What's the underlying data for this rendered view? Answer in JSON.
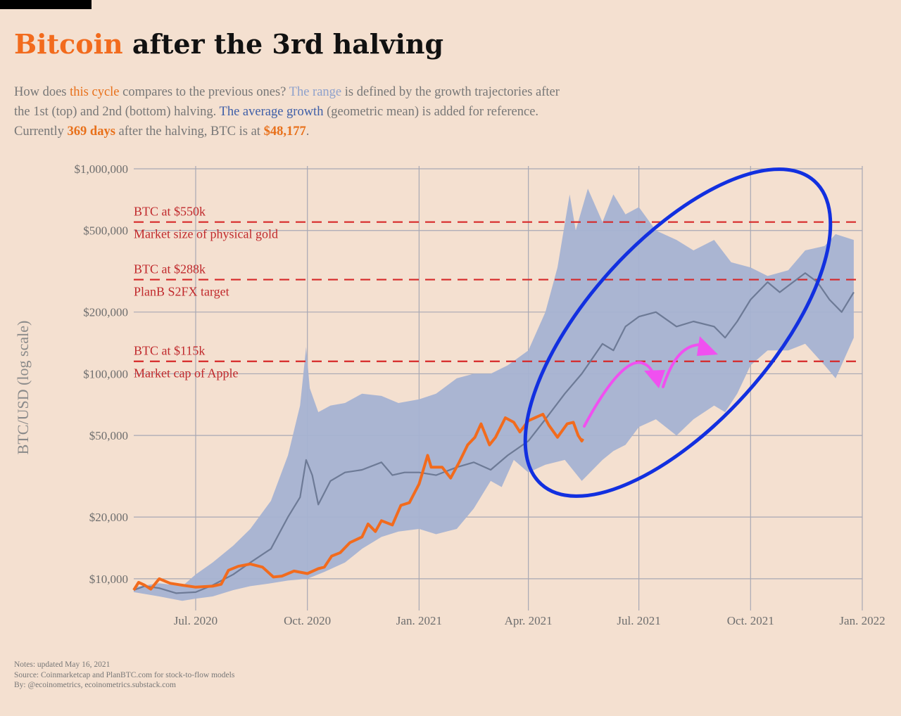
{
  "header": {
    "title_accent": "Bitcoin",
    "title_rest": " after the 3rd halving",
    "sub_1a": "How does ",
    "sub_1b": "this cycle",
    "sub_1c": " compares to the previous ones? ",
    "sub_1d": "The range",
    "sub_1e": " is defined by the growth trajectories after",
    "sub_2a": "the 1st (top) and 2nd (bottom) halving. ",
    "sub_2b": "The average growth",
    "sub_2c": " (geometric mean) is added for reference.",
    "sub_3a": "Currently ",
    "sub_3b": "369 days",
    "sub_3c": " after the halving, BTC is at ",
    "sub_3d": "$48,177",
    "sub_3e": "."
  },
  "notes": {
    "line1": "Notes: updated May 16, 2021",
    "line2": "Source: Coinmarketcap and PlanBTC.com for stock-to-flow models",
    "line3": "By: @ecoinometrics, ecoinometrics.substack.com"
  },
  "colors": {
    "btc": "#f26b1d",
    "range": "#a5b2d2",
    "average": "#6d7a96",
    "reference": "#d62828",
    "ellipse": "#1230e0",
    "arrow": "#f050f0"
  },
  "chart_data": {
    "type": "area",
    "ylabel": "BTC/USD (log scale)",
    "y_scale": "log",
    "ylim": [
      7000,
      1000000
    ],
    "xlim": [
      "2020-05-11",
      "2022-01-01"
    ],
    "x_ticks": [
      {
        "date": "2020-07-01",
        "label": "Jul. 2020"
      },
      {
        "date": "2020-10-01",
        "label": "Oct. 2020"
      },
      {
        "date": "2021-01-01",
        "label": "Jan. 2021"
      },
      {
        "date": "2021-04-01",
        "label": "Apr. 2021"
      },
      {
        "date": "2021-07-01",
        "label": "Jul. 2021"
      },
      {
        "date": "2021-10-01",
        "label": "Oct. 2021"
      },
      {
        "date": "2022-01-01",
        "label": "Jan. 2022"
      }
    ],
    "y_ticks": [
      {
        "value": 10000,
        "label": "$10,000"
      },
      {
        "value": 20000,
        "label": "$20,000"
      },
      {
        "value": 50000,
        "label": "$50,000"
      },
      {
        "value": 100000,
        "label": "$100,000"
      },
      {
        "value": 200000,
        "label": "$200,000"
      },
      {
        "value": 500000,
        "label": "$500,000"
      },
      {
        "value": 1000000,
        "label": "$1,000,000"
      }
    ],
    "grid": true,
    "reference_lines": [
      {
        "value": 550000,
        "label_top": "BTC at $550k",
        "label_bottom": "Market size of physical gold"
      },
      {
        "value": 288000,
        "label_top": "BTC at $288k",
        "label_bottom": "PlanB S2FX target"
      },
      {
        "value": 115000,
        "label_top": "BTC at $115k",
        "label_bottom": "Market cap of Apple"
      }
    ],
    "series": [
      {
        "name": "this cycle",
        "points": [
          [
            "2020-05-11",
            8800
          ],
          [
            "2020-05-15",
            9600
          ],
          [
            "2020-05-20",
            9300
          ],
          [
            "2020-05-25",
            8900
          ],
          [
            "2020-06-01",
            10000
          ],
          [
            "2020-06-10",
            9500
          ],
          [
            "2020-06-20",
            9300
          ],
          [
            "2020-07-01",
            9100
          ],
          [
            "2020-07-15",
            9200
          ],
          [
            "2020-07-22",
            9400
          ],
          [
            "2020-07-28",
            11000
          ],
          [
            "2020-08-05",
            11500
          ],
          [
            "2020-08-15",
            11800
          ],
          [
            "2020-08-25",
            11400
          ],
          [
            "2020-09-03",
            10200
          ],
          [
            "2020-09-10",
            10300
          ],
          [
            "2020-09-20",
            10900
          ],
          [
            "2020-10-01",
            10600
          ],
          [
            "2020-10-10",
            11200
          ],
          [
            "2020-10-15",
            11400
          ],
          [
            "2020-10-21",
            12900
          ],
          [
            "2020-10-28",
            13400
          ],
          [
            "2020-11-05",
            15000
          ],
          [
            "2020-11-15",
            16000
          ],
          [
            "2020-11-20",
            18500
          ],
          [
            "2020-11-26",
            17000
          ],
          [
            "2020-12-01",
            19200
          ],
          [
            "2020-12-10",
            18300
          ],
          [
            "2020-12-17",
            22800
          ],
          [
            "2020-12-24",
            23500
          ],
          [
            "2021-01-01",
            29000
          ],
          [
            "2021-01-08",
            40000
          ],
          [
            "2021-01-11",
            35000
          ],
          [
            "2021-01-20",
            35000
          ],
          [
            "2021-01-27",
            31000
          ],
          [
            "2021-02-03",
            37000
          ],
          [
            "2021-02-10",
            45000
          ],
          [
            "2021-02-16",
            49000
          ],
          [
            "2021-02-21",
            57000
          ],
          [
            "2021-02-28",
            45000
          ],
          [
            "2021-03-05",
            49000
          ],
          [
            "2021-03-13",
            61000
          ],
          [
            "2021-03-20",
            58000
          ],
          [
            "2021-03-25",
            52000
          ],
          [
            "2021-04-01",
            59000
          ],
          [
            "2021-04-13",
            63500
          ],
          [
            "2021-04-18",
            56000
          ],
          [
            "2021-04-25",
            49000
          ],
          [
            "2021-05-03",
            57000
          ],
          [
            "2021-05-08",
            58000
          ],
          [
            "2021-05-12",
            50000
          ],
          [
            "2021-05-15",
            47000
          ],
          [
            "2021-05-16",
            48177
          ]
        ]
      },
      {
        "name": "The average growth",
        "points": [
          [
            "2020-05-11",
            8800
          ],
          [
            "2020-05-20",
            9200
          ],
          [
            "2020-06-01",
            9000
          ],
          [
            "2020-06-15",
            8500
          ],
          [
            "2020-07-01",
            8600
          ],
          [
            "2020-07-15",
            9300
          ],
          [
            "2020-08-01",
            10500
          ],
          [
            "2020-08-15",
            12000
          ],
          [
            "2020-09-01",
            14000
          ],
          [
            "2020-09-15",
            20000
          ],
          [
            "2020-09-25",
            25000
          ],
          [
            "2020-09-30",
            38000
          ],
          [
            "2020-10-05",
            32000
          ],
          [
            "2020-10-10",
            23000
          ],
          [
            "2020-10-20",
            30000
          ],
          [
            "2020-11-01",
            33000
          ],
          [
            "2020-11-15",
            34000
          ],
          [
            "2020-12-01",
            37000
          ],
          [
            "2020-12-10",
            32000
          ],
          [
            "2020-12-20",
            33000
          ],
          [
            "2021-01-01",
            33000
          ],
          [
            "2021-01-15",
            32000
          ],
          [
            "2021-02-01",
            35000
          ],
          [
            "2021-02-15",
            37000
          ],
          [
            "2021-03-01",
            34000
          ],
          [
            "2021-03-15",
            40000
          ],
          [
            "2021-04-01",
            47000
          ],
          [
            "2021-04-15",
            60000
          ],
          [
            "2021-05-01",
            80000
          ],
          [
            "2021-05-15",
            100000
          ],
          [
            "2021-06-01",
            140000
          ],
          [
            "2021-06-10",
            130000
          ],
          [
            "2021-06-20",
            170000
          ],
          [
            "2021-07-01",
            190000
          ],
          [
            "2021-07-15",
            200000
          ],
          [
            "2021-08-01",
            170000
          ],
          [
            "2021-08-15",
            180000
          ],
          [
            "2021-09-01",
            170000
          ],
          [
            "2021-09-10",
            150000
          ],
          [
            "2021-09-20",
            180000
          ],
          [
            "2021-10-01",
            230000
          ],
          [
            "2021-10-15",
            280000
          ],
          [
            "2021-10-25",
            250000
          ],
          [
            "2021-11-05",
            280000
          ],
          [
            "2021-11-15",
            310000
          ],
          [
            "2021-11-25",
            280000
          ],
          [
            "2021-12-05",
            230000
          ],
          [
            "2021-12-15",
            200000
          ],
          [
            "2021-12-25",
            250000
          ]
        ]
      },
      {
        "name": "The range",
        "upper": [
          [
            "2020-05-11",
            9100
          ],
          [
            "2020-06-01",
            9500
          ],
          [
            "2020-06-20",
            9200
          ],
          [
            "2020-07-01",
            10500
          ],
          [
            "2020-07-15",
            12000
          ],
          [
            "2020-08-01",
            14500
          ],
          [
            "2020-08-15",
            17500
          ],
          [
            "2020-09-01",
            24000
          ],
          [
            "2020-09-15",
            40000
          ],
          [
            "2020-09-25",
            70000
          ],
          [
            "2020-09-30",
            135000
          ],
          [
            "2020-10-03",
            85000
          ],
          [
            "2020-10-10",
            65000
          ],
          [
            "2020-10-20",
            70000
          ],
          [
            "2020-11-01",
            72000
          ],
          [
            "2020-11-15",
            80000
          ],
          [
            "2020-12-01",
            78000
          ],
          [
            "2020-12-15",
            72000
          ],
          [
            "2021-01-01",
            75000
          ],
          [
            "2021-01-15",
            80000
          ],
          [
            "2021-02-01",
            95000
          ],
          [
            "2021-02-15",
            100000
          ],
          [
            "2021-03-01",
            100000
          ],
          [
            "2021-03-15",
            110000
          ],
          [
            "2021-04-01",
            130000
          ],
          [
            "2021-04-15",
            200000
          ],
          [
            "2021-04-25",
            330000
          ],
          [
            "2021-05-05",
            750000
          ],
          [
            "2021-05-10",
            500000
          ],
          [
            "2021-05-20",
            800000
          ],
          [
            "2021-06-01",
            550000
          ],
          [
            "2021-06-10",
            750000
          ],
          [
            "2021-06-20",
            600000
          ],
          [
            "2021-07-01",
            650000
          ],
          [
            "2021-07-15",
            500000
          ],
          [
            "2021-08-01",
            450000
          ],
          [
            "2021-08-15",
            400000
          ],
          [
            "2021-09-01",
            450000
          ],
          [
            "2021-09-15",
            350000
          ],
          [
            "2021-10-01",
            330000
          ],
          [
            "2021-10-15",
            300000
          ],
          [
            "2021-11-01",
            320000
          ],
          [
            "2021-11-15",
            400000
          ],
          [
            "2021-12-01",
            420000
          ],
          [
            "2021-12-10",
            480000
          ],
          [
            "2021-12-25",
            450000
          ]
        ],
        "lower": [
          [
            "2020-05-11",
            8600
          ],
          [
            "2020-06-01",
            8200
          ],
          [
            "2020-06-20",
            7800
          ],
          [
            "2020-07-01",
            8000
          ],
          [
            "2020-07-15",
            8200
          ],
          [
            "2020-08-01",
            8800
          ],
          [
            "2020-08-15",
            9200
          ],
          [
            "2020-09-01",
            9500
          ],
          [
            "2020-09-15",
            9800
          ],
          [
            "2020-10-01",
            10000
          ],
          [
            "2020-10-15",
            10800
          ],
          [
            "2020-11-01",
            12000
          ],
          [
            "2020-11-15",
            14000
          ],
          [
            "2020-12-01",
            16000
          ],
          [
            "2020-12-15",
            17000
          ],
          [
            "2021-01-01",
            17500
          ],
          [
            "2021-01-15",
            16500
          ],
          [
            "2021-02-01",
            17500
          ],
          [
            "2021-02-15",
            22000
          ],
          [
            "2021-03-01",
            30000
          ],
          [
            "2021-03-10",
            28000
          ],
          [
            "2021-03-20",
            38000
          ],
          [
            "2021-04-01",
            33000
          ],
          [
            "2021-04-15",
            36000
          ],
          [
            "2021-05-01",
            38000
          ],
          [
            "2021-05-15",
            30000
          ],
          [
            "2021-06-01",
            38000
          ],
          [
            "2021-06-10",
            42000
          ],
          [
            "2021-06-20",
            45000
          ],
          [
            "2021-07-01",
            55000
          ],
          [
            "2021-07-15",
            60000
          ],
          [
            "2021-08-01",
            50000
          ],
          [
            "2021-08-15",
            60000
          ],
          [
            "2021-09-01",
            70000
          ],
          [
            "2021-09-10",
            65000
          ],
          [
            "2021-09-20",
            80000
          ],
          [
            "2021-10-01",
            110000
          ],
          [
            "2021-10-15",
            130000
          ],
          [
            "2021-11-01",
            130000
          ],
          [
            "2021-11-15",
            140000
          ],
          [
            "2021-12-01",
            110000
          ],
          [
            "2021-12-10",
            95000
          ],
          [
            "2021-12-25",
            150000
          ]
        ]
      }
    ]
  }
}
